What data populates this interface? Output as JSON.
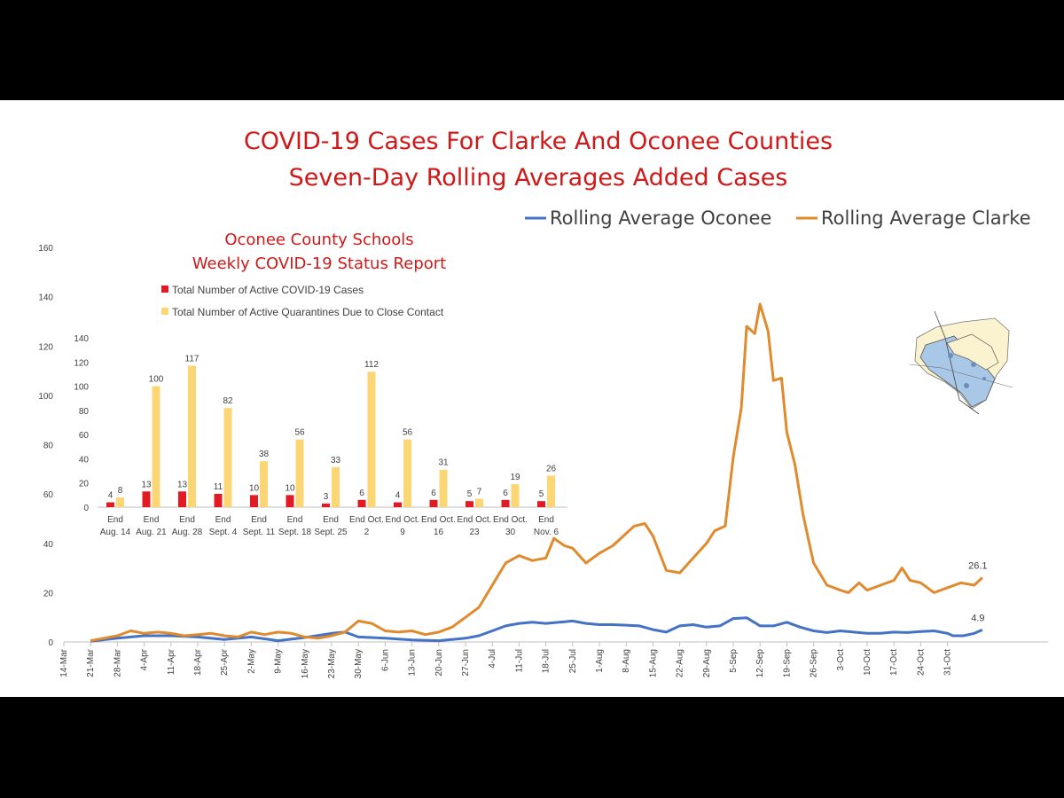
{
  "chart_data": [
    {
      "type": "line",
      "title": "COVID-19 Cases For Clarke And Oconee Counties",
      "subtitle": "Seven-Day Rolling Averages Added Cases",
      "legend_position": "top-right",
      "ylim": [
        0,
        160
      ],
      "yticks": [
        0,
        20,
        40,
        60,
        80,
        100,
        120,
        140,
        160
      ],
      "x_labels": [
        "14-Mar",
        "21-Mar",
        "28-Mar",
        "4-Apr",
        "11-Apr",
        "18-Apr",
        "25-Apr",
        "2-May",
        "9-May",
        "16-May",
        "23-May",
        "30-May",
        "6-Jun",
        "13-Jun",
        "20-Jun",
        "27-Jun",
        "4-Jul",
        "11-Jul",
        "18-Jul",
        "25-Jul",
        "1-Aug",
        "8-Aug",
        "15-Aug",
        "22-Aug",
        "29-Aug",
        "5-Sep",
        "12-Sep",
        "19-Sep",
        "26-Sep",
        "3-Oct",
        "10-Oct",
        "17-Oct",
        "24-Oct",
        "31-Oct"
      ],
      "series": [
        {
          "name": "Rolling Average Oconee",
          "color": "#4472c4",
          "end_label": "4.9",
          "points": [
            [
              1,
              0.3
            ],
            [
              2,
              1.5
            ],
            [
              3,
              2.5
            ],
            [
              4,
              2.5
            ],
            [
              5,
              2.0
            ],
            [
              6,
              1.0
            ],
            [
              7,
              2.0
            ],
            [
              8,
              0.5
            ],
            [
              9,
              1.8
            ],
            [
              10,
              3.5
            ],
            [
              10.5,
              4.0
            ],
            [
              11,
              2.0
            ],
            [
              12,
              1.5
            ],
            [
              13,
              0.8
            ],
            [
              14,
              0.5
            ],
            [
              14.5,
              1.0
            ],
            [
              15,
              1.5
            ],
            [
              15.5,
              2.5
            ],
            [
              16,
              4.5
            ],
            [
              16.5,
              6.5
            ],
            [
              17,
              7.5
            ],
            [
              17.5,
              8.0
            ],
            [
              18,
              7.5
            ],
            [
              18.5,
              8.0
            ],
            [
              19,
              8.5
            ],
            [
              19.5,
              7.5
            ],
            [
              20,
              7.0
            ],
            [
              20.5,
              7.0
            ],
            [
              21,
              6.8
            ],
            [
              21.5,
              6.5
            ],
            [
              22,
              5.0
            ],
            [
              22.5,
              4.0
            ],
            [
              23,
              6.5
            ],
            [
              23.5,
              7.0
            ],
            [
              24,
              6.0
            ],
            [
              24.5,
              6.5
            ],
            [
              25,
              9.5
            ],
            [
              25.5,
              9.8
            ],
            [
              26,
              6.5
            ],
            [
              26.5,
              6.5
            ],
            [
              27,
              8.0
            ],
            [
              27.5,
              6.0
            ],
            [
              28,
              4.5
            ],
            [
              28.5,
              3.8
            ],
            [
              29,
              4.5
            ],
            [
              29.5,
              4.0
            ],
            [
              30,
              3.5
            ],
            [
              30.5,
              3.5
            ],
            [
              31,
              4.0
            ],
            [
              31.5,
              3.8
            ],
            [
              32,
              4.2
            ],
            [
              32.5,
              4.5
            ],
            [
              33,
              3.5
            ],
            [
              33.2,
              2.5
            ],
            [
              33.6,
              2.5
            ],
            [
              34,
              3.5
            ],
            [
              34.3,
              4.9
            ]
          ]
        },
        {
          "name": "Rolling Average Clarke",
          "color": "#e08a2e",
          "end_label": "26.1",
          "points": [
            [
              1,
              0.5
            ],
            [
              1.5,
              1.5
            ],
            [
              2,
              2.5
            ],
            [
              2.5,
              4.5
            ],
            [
              3,
              3.5
            ],
            [
              3.5,
              4.0
            ],
            [
              4,
              3.5
            ],
            [
              4.5,
              2.5
            ],
            [
              5,
              3.0
            ],
            [
              5.5,
              3.5
            ],
            [
              6,
              2.5
            ],
            [
              6.5,
              2.0
            ],
            [
              7,
              4.0
            ],
            [
              7.5,
              3.0
            ],
            [
              8,
              4.0
            ],
            [
              8.5,
              3.5
            ],
            [
              9,
              2.0
            ],
            [
              9.5,
              1.5
            ],
            [
              10,
              2.5
            ],
            [
              10.5,
              4.0
            ],
            [
              11,
              8.5
            ],
            [
              11.5,
              7.5
            ],
            [
              12,
              4.5
            ],
            [
              12.5,
              4.0
            ],
            [
              13,
              4.5
            ],
            [
              13.5,
              3.0
            ],
            [
              14,
              4.0
            ],
            [
              14.5,
              6.0
            ],
            [
              15,
              10.0
            ],
            [
              15.5,
              14.0
            ],
            [
              16,
              23.0
            ],
            [
              16.5,
              32.0
            ],
            [
              17,
              35.0
            ],
            [
              17.5,
              33.0
            ],
            [
              18,
              34.0
            ],
            [
              18.3,
              42.0
            ],
            [
              18.7,
              39.0
            ],
            [
              19,
              38.0
            ],
            [
              19.5,
              32.0
            ],
            [
              20,
              36.0
            ],
            [
              20.5,
              39.0
            ],
            [
              21,
              44.0
            ],
            [
              21.3,
              47.0
            ],
            [
              21.7,
              48.0
            ],
            [
              22,
              43.0
            ],
            [
              22.5,
              29.0
            ],
            [
              23,
              28.0
            ],
            [
              23.5,
              34.0
            ],
            [
              24,
              40.0
            ],
            [
              24.3,
              45.0
            ],
            [
              24.7,
              47.0
            ],
            [
              25,
              75.0
            ],
            [
              25.3,
              95.0
            ],
            [
              25.5,
              128.0
            ],
            [
              25.8,
              125.0
            ],
            [
              26,
              137.0
            ],
            [
              26.3,
              126.0
            ],
            [
              26.5,
              106.0
            ],
            [
              26.8,
              107.0
            ],
            [
              27,
              85.0
            ],
            [
              27.3,
              72.0
            ],
            [
              27.6,
              52.0
            ],
            [
              28,
              32.0
            ],
            [
              28.5,
              23.0
            ],
            [
              29,
              21.0
            ],
            [
              29.3,
              20.0
            ],
            [
              29.7,
              24.0
            ],
            [
              30,
              21.0
            ],
            [
              30.5,
              23.0
            ],
            [
              31,
              25.0
            ],
            [
              31.3,
              30.0
            ],
            [
              31.6,
              25.0
            ],
            [
              32,
              24.0
            ],
            [
              32.5,
              20.0
            ],
            [
              33,
              22.0
            ],
            [
              33.5,
              24.0
            ],
            [
              34,
              23.0
            ],
            [
              34.3,
              26.1
            ]
          ]
        }
      ]
    },
    {
      "type": "bar",
      "title": "Oconee County Schools",
      "subtitle": "Weekly COVID-19 Status Report",
      "ylim": [
        0,
        140
      ],
      "yticks": [
        0,
        20,
        40,
        60,
        80,
        100,
        120,
        140
      ],
      "categories": [
        {
          "line1": "End",
          "line2": "Aug. 14"
        },
        {
          "line1": "End",
          "line2": "Aug. 21"
        },
        {
          "line1": "End",
          "line2": "Aug. 28"
        },
        {
          "line1": "End",
          "line2": "Sept. 4"
        },
        {
          "line1": "End",
          "line2": "Sept. 11"
        },
        {
          "line1": "End",
          "line2": "Sept. 18"
        },
        {
          "line1": "End",
          "line2": "Sept. 25"
        },
        {
          "line1": "End Oct.",
          "line2": "2"
        },
        {
          "line1": "End Oct.",
          "line2": "9"
        },
        {
          "line1": "End Oct.",
          "line2": "16"
        },
        {
          "line1": "End Oct.",
          "line2": "23"
        },
        {
          "line1": "End Oct.",
          "line2": "30"
        },
        {
          "line1": "End",
          "line2": "Nov. 6"
        }
      ],
      "series": [
        {
          "name": "Total Number of Active COVID-19 Cases",
          "color": "#e01b24",
          "values": [
            4,
            13,
            13,
            11,
            10,
            10,
            3,
            6,
            4,
            6,
            5,
            6,
            5
          ]
        },
        {
          "name": "Total Number of Active Quarantines Due to Close Contact",
          "color": "#fcd575",
          "values": [
            8,
            100,
            117,
            82,
            38,
            56,
            33,
            112,
            56,
            31,
            7,
            19,
            26
          ]
        }
      ]
    }
  ],
  "map_image": {
    "description_icon": "county-map-icon",
    "water_color": "#a9c8e8",
    "land_color": "#fbf3cf"
  }
}
